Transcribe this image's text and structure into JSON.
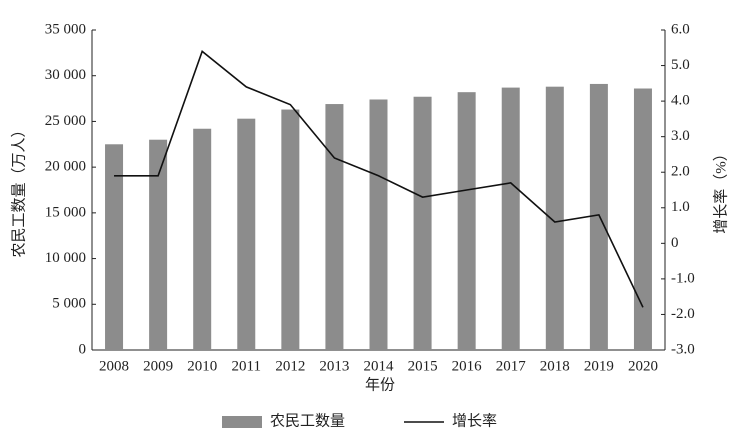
{
  "chart_data": {
    "type": "bar",
    "x_label": "年份",
    "y_label": "农民工数量（万人）",
    "y2_label": "增长率（%）",
    "categories": [
      "2008",
      "2009",
      "2010",
      "2011",
      "2012",
      "2013",
      "2014",
      "2015",
      "2016",
      "2017",
      "2018",
      "2019",
      "2020"
    ],
    "series": [
      {
        "name": "农民工数量",
        "type": "bar",
        "color": "#8c8c8c",
        "values": [
          22500,
          23000,
          24200,
          25300,
          26300,
          26900,
          27400,
          27700,
          28200,
          28700,
          28800,
          29100,
          28600
        ]
      },
      {
        "name": "增长率",
        "type": "line",
        "axis": "y2",
        "color": "#111111",
        "values": [
          1.9,
          1.9,
          5.4,
          4.4,
          3.9,
          2.4,
          1.9,
          1.3,
          1.5,
          1.7,
          0.6,
          0.8,
          -1.8
        ]
      }
    ],
    "ylim": [
      0,
      35000
    ],
    "yticks": [
      0,
      {
        "value": 5000,
        "label": "5 000"
      },
      {
        "value": 10000,
        "label": "10 000"
      },
      {
        "value": 15000,
        "label": "15 000"
      },
      {
        "value": 20000,
        "label": "20 000"
      },
      {
        "value": 25000,
        "label": "25 000"
      },
      {
        "value": 30000,
        "label": "30 000"
      },
      {
        "value": 35000,
        "label": "35 000"
      }
    ],
    "y2lim": [
      -3,
      6
    ],
    "y2ticks": [
      {
        "value": -3,
        "label": "-3.0"
      },
      {
        "value": -2,
        "label": "-2.0"
      },
      {
        "value": -1,
        "label": "-1.0"
      },
      0,
      {
        "value": 1,
        "label": "1.0"
      },
      {
        "value": 2,
        "label": "2.0"
      },
      {
        "value": 3,
        "label": "3.0"
      },
      {
        "value": 4,
        "label": "4.0"
      },
      {
        "value": 5,
        "label": "5.0"
      },
      {
        "value": 6,
        "label": "6.0"
      }
    ],
    "grid": false,
    "legend": "bottom"
  }
}
